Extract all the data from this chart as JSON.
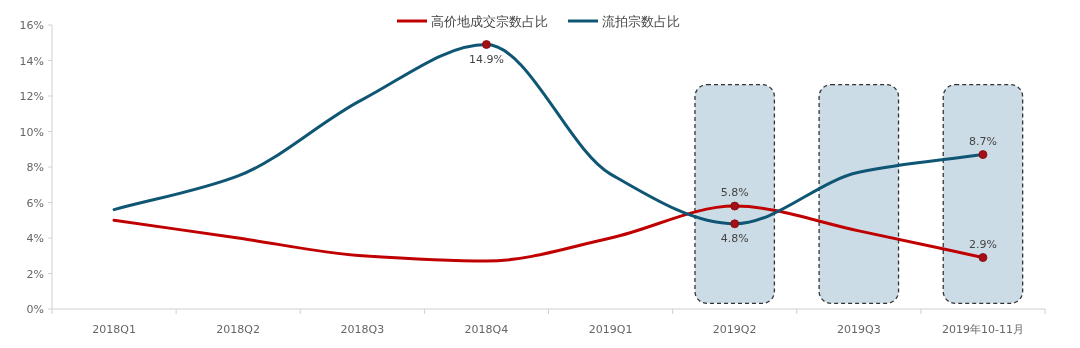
{
  "chart_data": {
    "type": "line",
    "categories": [
      "2018Q1",
      "2018Q2",
      "2018Q3",
      "2018Q4",
      "2019Q1",
      "2019Q2",
      "2019Q3",
      "2019年10-11月"
    ],
    "series": [
      {
        "name": "高价地成交宗数占比",
        "color": "#c00000",
        "values": [
          5.0,
          4.0,
          3.0,
          2.7,
          4.0,
          5.8,
          4.4,
          2.9
        ],
        "value_labels": [
          null,
          null,
          null,
          null,
          null,
          "5.8%",
          null,
          "2.9%"
        ]
      },
      {
        "name": "流拍宗数占比",
        "color": "#0e5673",
        "values": [
          5.6,
          7.5,
          11.8,
          14.9,
          7.6,
          4.8,
          7.7,
          8.7
        ],
        "value_labels": [
          null,
          null,
          null,
          "14.9%",
          null,
          "4.8%",
          null,
          "8.7%"
        ]
      }
    ],
    "ylim": [
      0,
      16
    ],
    "yticks": [
      {
        "value": 0,
        "label": "0%"
      },
      {
        "value": 2,
        "label": "2%"
      },
      {
        "value": 4,
        "label": "4%"
      },
      {
        "value": 6,
        "label": "6%"
      },
      {
        "value": 8,
        "label": "8%"
      },
      {
        "value": 10,
        "label": "10%"
      },
      {
        "value": 12,
        "label": "12%"
      },
      {
        "value": 14,
        "label": "14%"
      },
      {
        "value": 16,
        "label": "16%"
      }
    ],
    "bands": [
      {
        "axis": "x",
        "from": "2019Q2",
        "to": "2019Q2",
        "color": "#ccdce6"
      },
      {
        "axis": "x",
        "from": "2019Q3",
        "to": "2019Q3",
        "color": "#ccdce6"
      },
      {
        "axis": "x",
        "from": "2019年10-11月",
        "to": "2019年10-11月",
        "color": "#ccdce6"
      }
    ],
    "legend": "top",
    "grid": false
  }
}
